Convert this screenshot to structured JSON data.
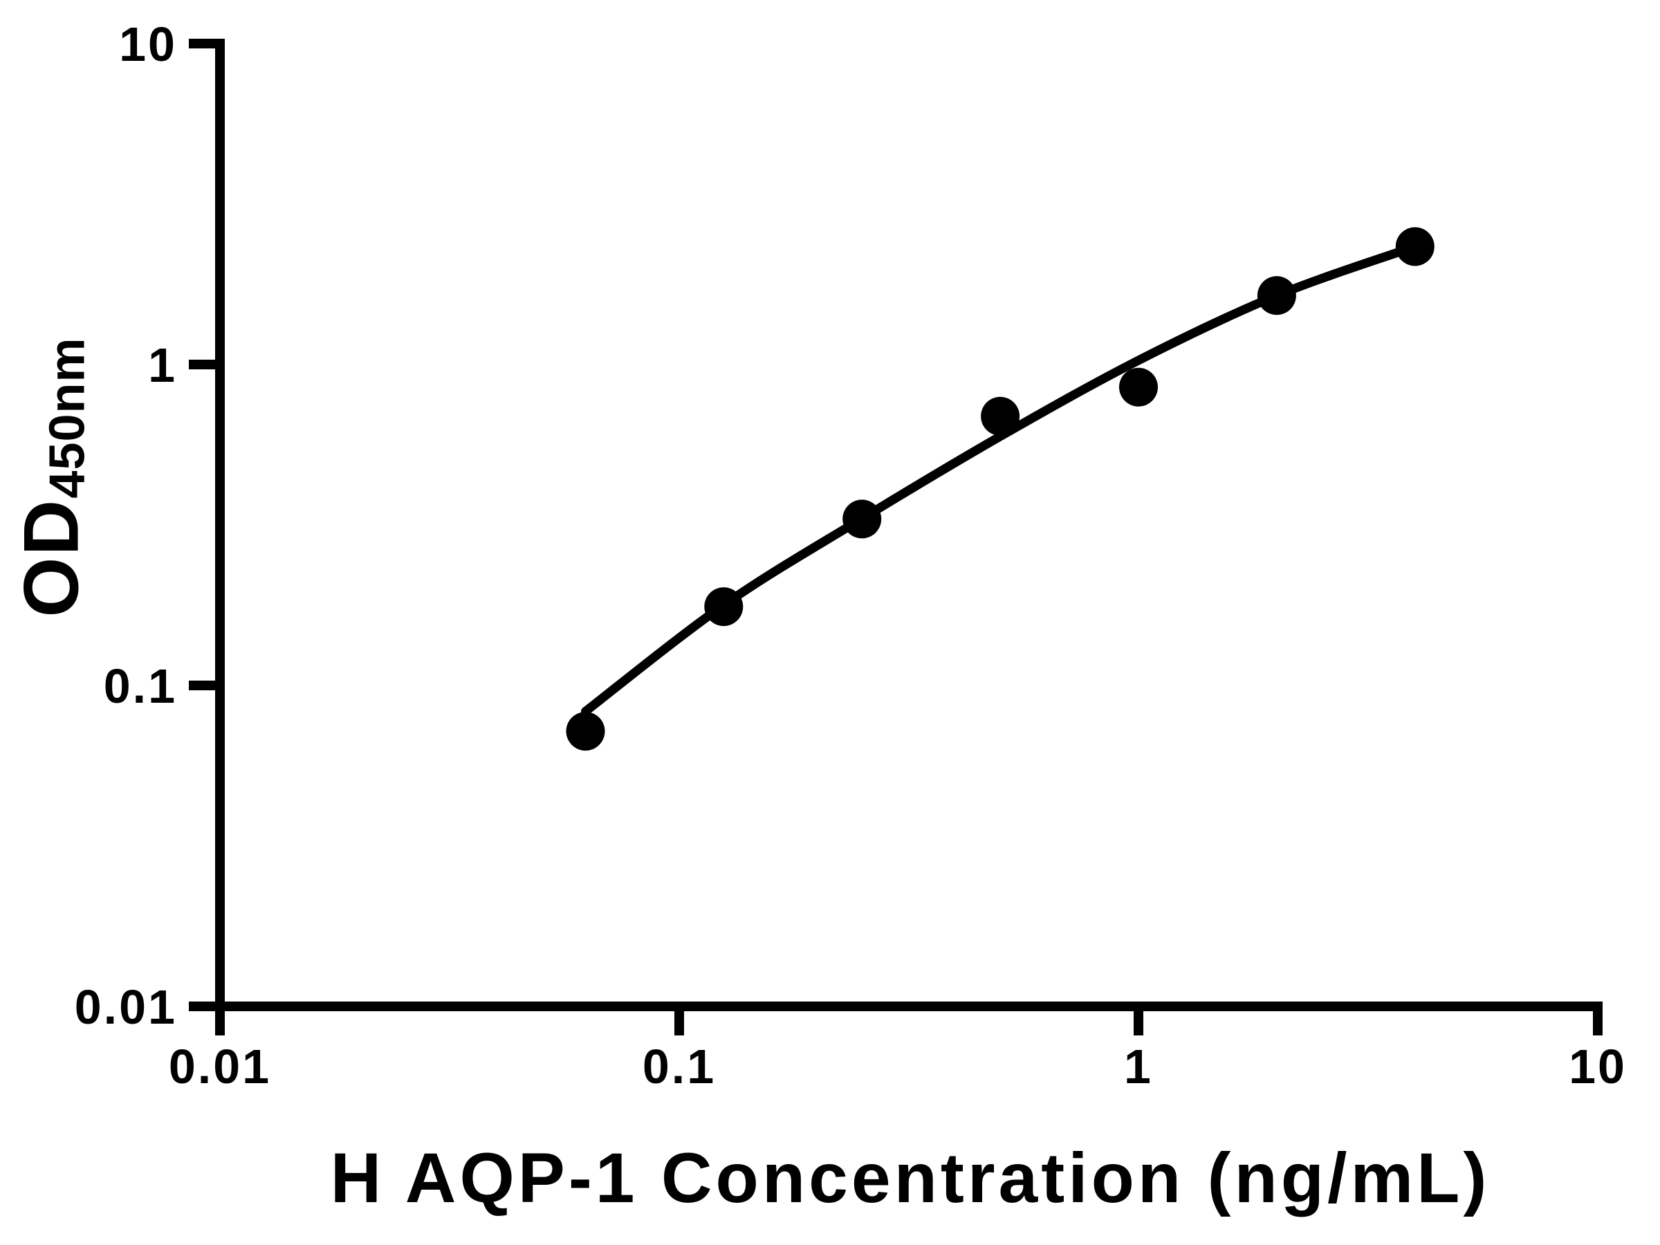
{
  "figure": {
    "background": "#ffffff",
    "foreground": "#000000"
  },
  "chart_data": {
    "type": "scatter",
    "title": "",
    "xlabel": "H AQP-1 Concentration (ng/mL)",
    "ylabel_main": "OD",
    "ylabel_sub": "450nm",
    "x_scale": "log",
    "y_scale": "log",
    "xlim": [
      0.01,
      10
    ],
    "ylim": [
      0.01,
      10
    ],
    "grid": false,
    "legend": null,
    "x_tick_values": [
      0.01,
      0.1,
      1,
      10
    ],
    "x_tick_labels": [
      "0.01",
      "0.1",
      "1",
      "10"
    ],
    "y_tick_values": [
      10,
      1,
      0.1,
      0.01
    ],
    "y_tick_labels": [
      "10",
      "1",
      "0.1",
      "0.01"
    ],
    "marker_color": "#000000",
    "line_color": "#000000",
    "axis_color": "#000000",
    "series": [
      {
        "name": "standard-curve-data-points",
        "type": "scatter",
        "marker": "filled-circle",
        "x": [
          0.0625,
          0.125,
          0.25,
          0.5,
          1,
          2,
          4
        ],
        "y": [
          0.072,
          0.176,
          0.33,
          0.69,
          0.85,
          1.64,
          2.33
        ]
      }
    ],
    "fit_curve": {
      "name": "fitted-standard-curve",
      "type": "line",
      "x": [
        0.0625,
        0.125,
        0.25,
        0.5,
        1,
        2,
        4
      ],
      "y": [
        0.083,
        0.178,
        0.331,
        0.597,
        1.03,
        1.64,
        2.33
      ]
    }
  }
}
